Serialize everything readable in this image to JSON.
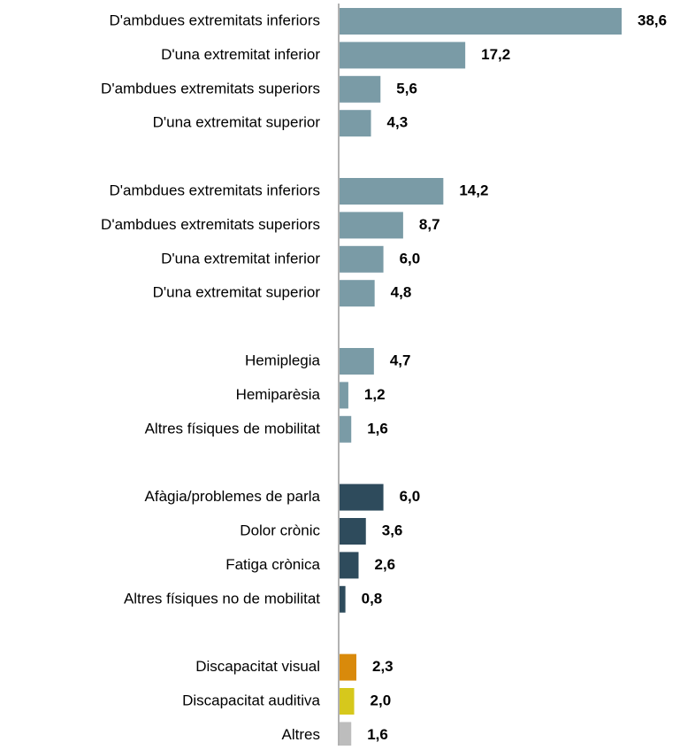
{
  "chart_data": {
    "type": "hbar",
    "categories": [
      "D'ambdues extremitats inferiors",
      "D'una extremitat inferior",
      "D'ambdues extremitats superiors",
      "D'una extremitat superior",
      null,
      "D'ambdues extremitats inferiors",
      "D'ambdues extremitats superiors",
      "D'una extremitat inferior",
      "D'una extremitat superior",
      null,
      "Hemiplegia",
      "Hemiparèsia",
      "Altres físiques de mobilitat",
      null,
      "Afàgia/problemes de parla",
      "Dolor crònic",
      "Fatiga crònica",
      "Altres físiques no de mobilitat",
      null,
      "Discapacitat visual",
      "Discapacitat auditiva",
      "Altres"
    ],
    "values": [
      38.6,
      17.2,
      5.6,
      4.3,
      null,
      14.2,
      8.7,
      6.0,
      4.8,
      null,
      4.7,
      1.2,
      1.6,
      null,
      6.0,
      3.6,
      2.6,
      0.8,
      null,
      2.3,
      2.0,
      1.6
    ],
    "value_labels": [
      "38,6",
      "17,2",
      "5,6",
      "4,3",
      null,
      "14,2",
      "8,7",
      "6,0",
      "4,8",
      null,
      "4,7",
      "1,2",
      "1,6",
      null,
      "6,0",
      "3,6",
      "2,6",
      "0,8",
      null,
      "2,3",
      "2,0",
      "1,6"
    ],
    "colors": [
      "#7a9ba6",
      "#7a9ba6",
      "#7a9ba6",
      "#7a9ba6",
      null,
      "#7a9ba6",
      "#7a9ba6",
      "#7a9ba6",
      "#7a9ba6",
      null,
      "#7a9ba6",
      "#7a9ba6",
      "#7a9ba6",
      null,
      "#2e4b5c",
      "#2e4b5c",
      "#2e4b5c",
      "#2e4b5c",
      null,
      "#d98a0b",
      "#d6c81c",
      "#bdbdbd"
    ]
  }
}
